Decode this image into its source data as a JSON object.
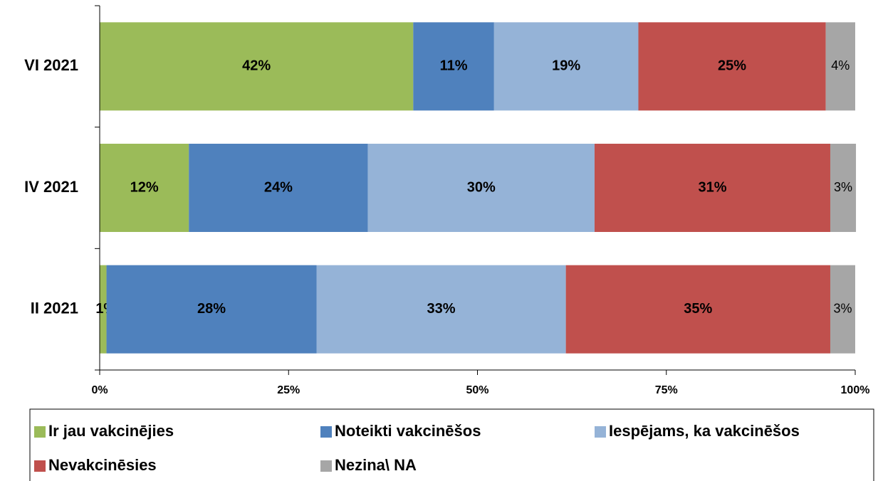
{
  "chart_data": {
    "type": "stacked-bar-horizontal",
    "categories": [
      "VI 2021",
      "IV 2021",
      "II 2021"
    ],
    "series": [
      {
        "name": "Ir jau vakcinējies",
        "color": "#9bbb59",
        "values": [
          41.5,
          11.8,
          0.9
        ],
        "value_labels": [
          "42%",
          "12%",
          "1%"
        ]
      },
      {
        "name": "Noteikti vakcinēšos",
        "color": "#4f81bd",
        "values": [
          10.7,
          23.7,
          27.8
        ],
        "value_labels": [
          "11%",
          "24%",
          "28%"
        ]
      },
      {
        "name": "Iespējams, ka vakcinēšos",
        "color": "#95b3d7",
        "values": [
          19.1,
          30.0,
          33.0
        ],
        "value_labels": [
          "19%",
          "30%",
          "33%"
        ]
      },
      {
        "name": "Nevakcinēsies",
        "color": "#c0504d",
        "values": [
          24.8,
          31.2,
          35.0
        ],
        "value_labels": [
          "25%",
          "31%",
          "35%"
        ]
      },
      {
        "name": "Nezina\\ NA",
        "color": "#a6a6a6",
        "values": [
          3.9,
          3.4,
          3.3
        ],
        "value_labels": [
          "4%",
          "3%",
          "3%"
        ]
      }
    ],
    "xlim": [
      0,
      100
    ],
    "xticks": [
      {
        "value": 0,
        "label": "0%"
      },
      {
        "value": 25,
        "label": "25%"
      },
      {
        "value": 50,
        "label": "50%"
      },
      {
        "value": 75,
        "label": "75%"
      },
      {
        "value": 100,
        "label": "100%"
      }
    ],
    "legend": "bottom"
  }
}
